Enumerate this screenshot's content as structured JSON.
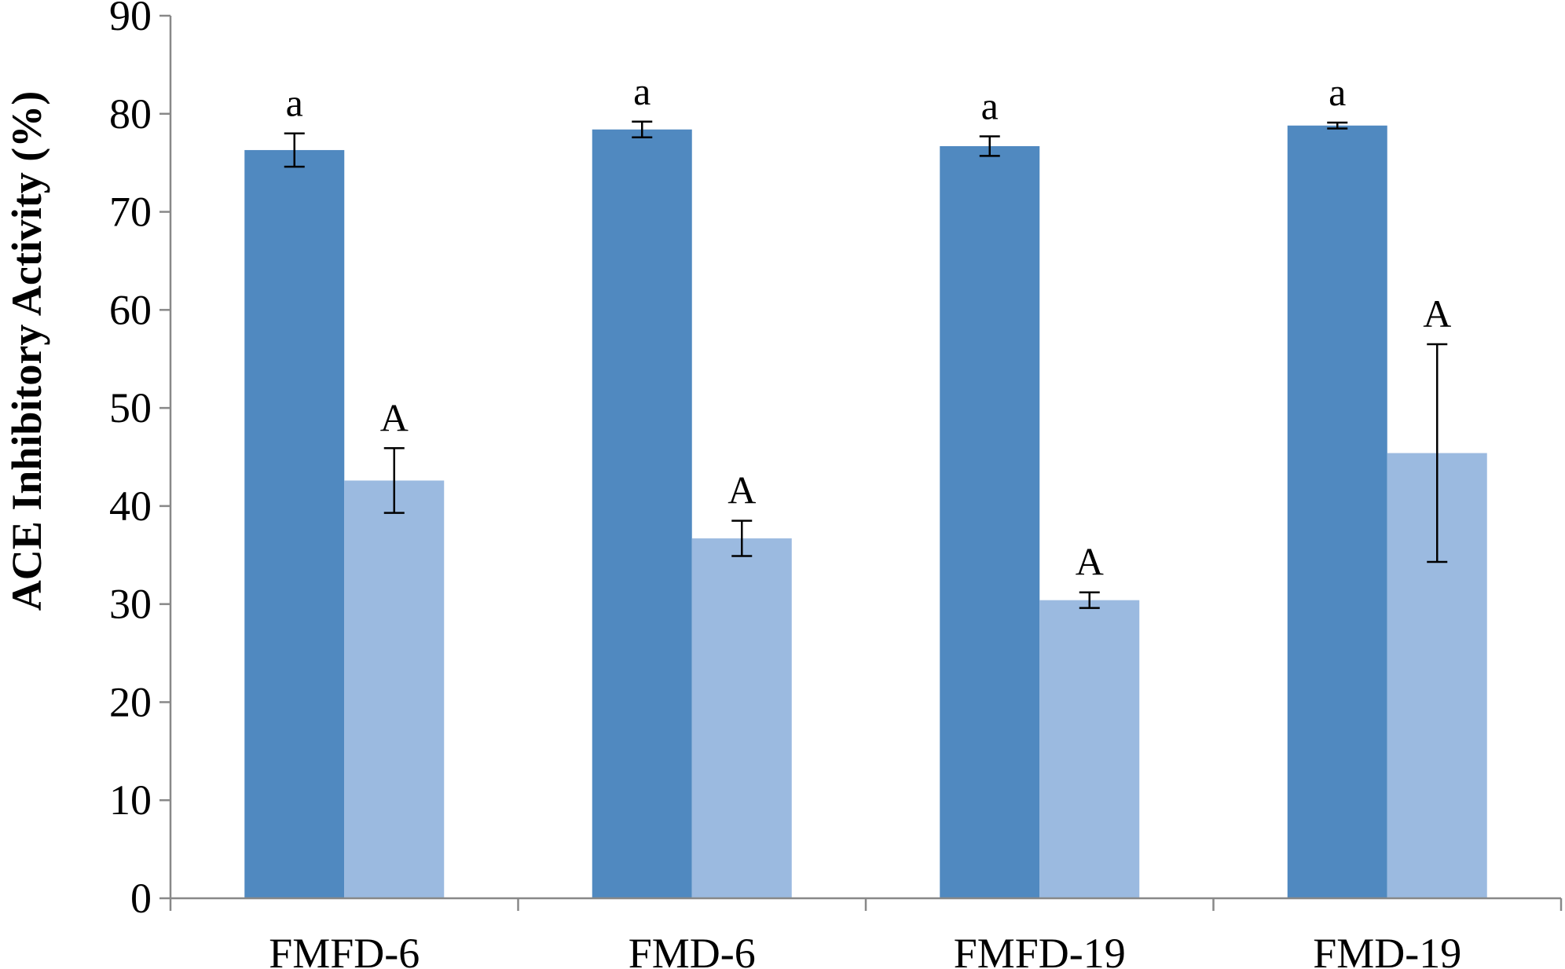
{
  "chart_data": {
    "type": "bar",
    "title": "",
    "xlabel": "",
    "ylabel": "ACE Inhibitory Activity (%)",
    "ylim": [
      0,
      90
    ],
    "yticks": [
      0,
      10,
      20,
      30,
      40,
      50,
      60,
      70,
      80,
      90
    ],
    "categories": [
      "FMFD-6",
      "FMD-6",
      "FMFD-19",
      "FMD-19"
    ],
    "grid": false,
    "legend": "none",
    "series": [
      {
        "color": "#5089C0",
        "values": [
          76.3,
          78.4,
          76.7,
          78.8
        ],
        "errors": [
          1.7,
          0.8,
          1.0,
          0.3
        ],
        "labels": [
          "a",
          "a",
          "a",
          "a"
        ]
      },
      {
        "color": "#9BBAE0",
        "values": [
          42.6,
          36.7,
          30.4,
          45.4
        ],
        "errors": [
          3.3,
          1.8,
          0.8,
          11.1
        ],
        "labels": [
          "A",
          "A",
          "A",
          "A"
        ]
      }
    ]
  }
}
